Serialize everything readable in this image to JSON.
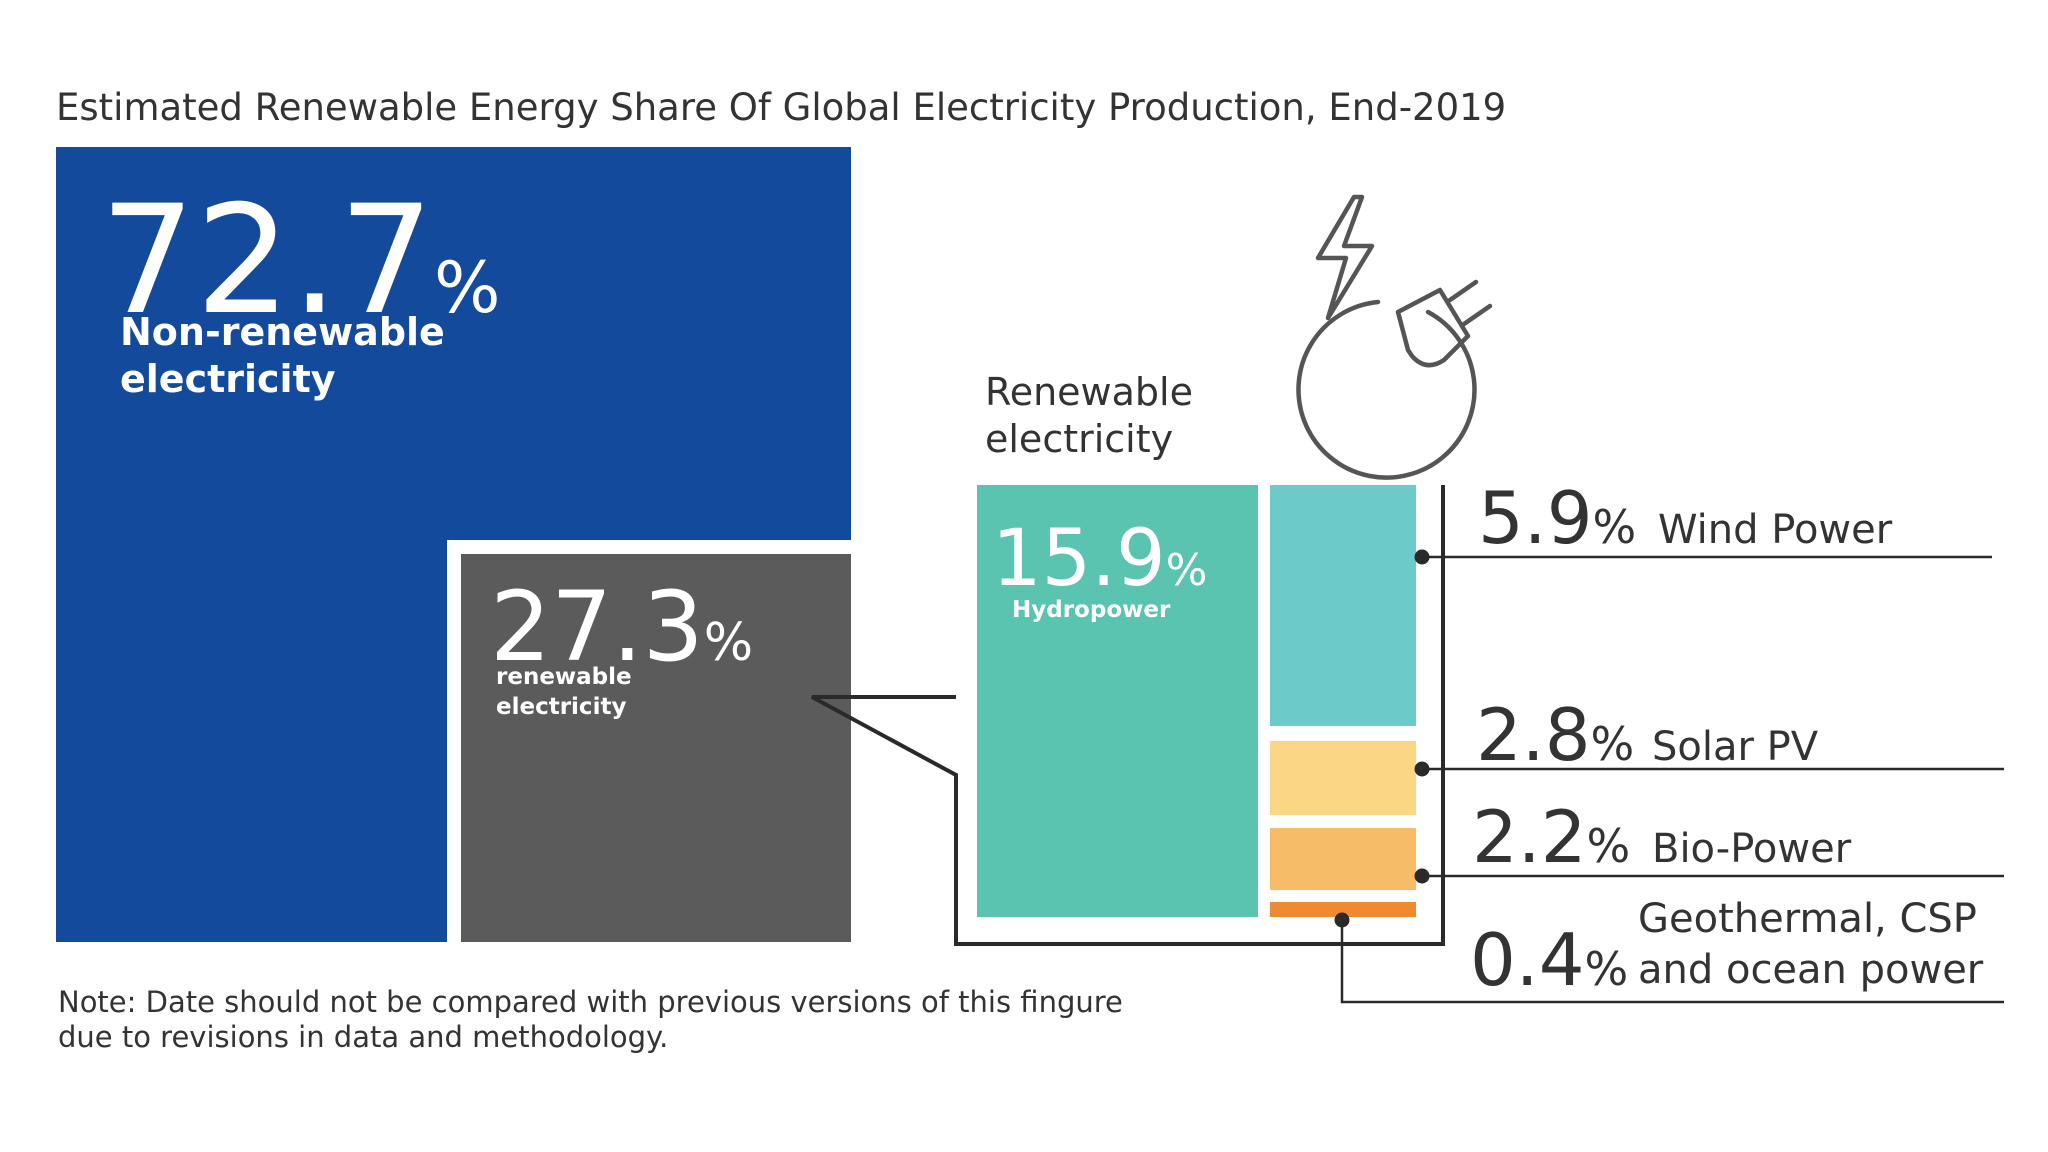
{
  "title": "Estimated Renewable Energy Share Of Global Electricity Production, End-2019",
  "note": {
    "line1": "Note: Date should not be compared with previous versions of this fingure",
    "line2": "due to revisions in data and methodology."
  },
  "colors": {
    "non_renewable": "#134a9c",
    "renewable": "#5b5b5b",
    "hydro": "#5bc4b0",
    "wind": "#6ccac9",
    "solar": "#fad685",
    "bio": "#f6bc67",
    "geo": "#f08a30",
    "text": "#333333"
  },
  "percent_sign": "%",
  "renewable_heading": {
    "line1": "Renewable",
    "line2": "electricity"
  },
  "chart_data": {
    "type": "treemap",
    "title": "Estimated Renewable Energy Share Of Global Electricity Production, End-2019",
    "units": "% of global electricity production",
    "overall": [
      {
        "key": "non_renewable",
        "value": 72.7,
        "value_label": "72.7",
        "label_line1": "Non-renewable",
        "label_line2": "electricity"
      },
      {
        "key": "renewable",
        "value": 27.3,
        "value_label": "27.3",
        "label_line1": "renewable",
        "label_line2": "electricity"
      }
    ],
    "renewable_breakdown": [
      {
        "key": "hydro",
        "value": 15.9,
        "value_label": "15.9",
        "label": "Hydropower"
      },
      {
        "key": "wind",
        "value": 5.9,
        "value_label": "5.9",
        "label": "Wind Power"
      },
      {
        "key": "solar",
        "value": 2.8,
        "value_label": "2.8",
        "label": "Solar PV"
      },
      {
        "key": "bio",
        "value": 2.2,
        "value_label": "2.2",
        "label": "Bio-Power"
      },
      {
        "key": "geo",
        "value": 0.4,
        "value_label": "0.4",
        "label_line1": "Geothermal, CSP",
        "label_line2": "and ocean power"
      }
    ]
  }
}
